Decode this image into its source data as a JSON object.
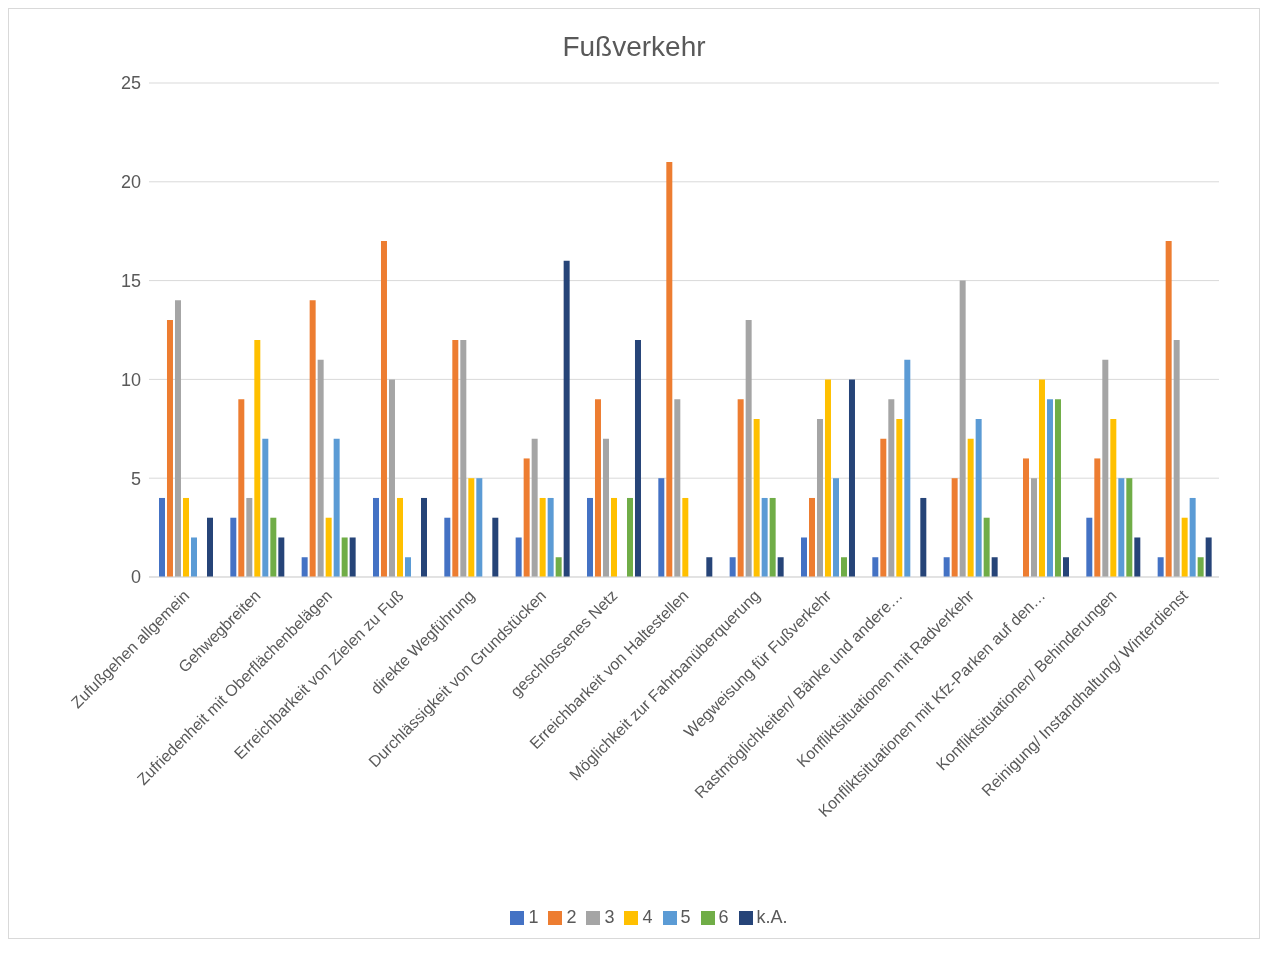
{
  "chart_data": {
    "type": "bar",
    "title": "Fußverkehr",
    "categories": [
      "Zufußgehen allgemein",
      "Gehwegbreiten",
      "Zufriedenheit mit Oberflächenbelägen",
      "Erreichbarkeit von Zielen zu Fuß",
      "direkte Wegführung",
      "Durchlässigkeit von Grundstücken",
      "geschlossenes Netz",
      "Erreichbarkeit von Haltestellen",
      "Möglichkeit zur Fahrbanüberquerung",
      "Wegweisung für Fußverkehr",
      "Rastmöglichkeiten/ Bänke und andere…",
      "Konfliktsituationen mit Radverkehr",
      "Konfliktsituationen mit Kfz-Parken auf den…",
      "Konfliktsituationen/ Behinderungen",
      "Reinigung/ Instandhaltung/ Winterdienst"
    ],
    "series": [
      {
        "name": "1",
        "color": "#4472c4",
        "values": [
          4,
          3,
          1,
          4,
          3,
          2,
          4,
          5,
          1,
          2,
          1,
          1,
          0,
          3,
          1
        ]
      },
      {
        "name": "2",
        "color": "#ed7d31",
        "values": [
          13,
          9,
          14,
          17,
          12,
          6,
          9,
          21,
          9,
          4,
          7,
          5,
          6,
          6,
          17
        ]
      },
      {
        "name": "3",
        "color": "#a5a5a5",
        "values": [
          14,
          4,
          11,
          10,
          12,
          7,
          7,
          9,
          13,
          8,
          9,
          15,
          5,
          11,
          12
        ]
      },
      {
        "name": "4",
        "color": "#ffc000",
        "values": [
          4,
          12,
          3,
          4,
          5,
          4,
          4,
          4,
          8,
          10,
          8,
          7,
          10,
          8,
          3
        ]
      },
      {
        "name": "5",
        "color": "#5b9bd5",
        "values": [
          2,
          7,
          7,
          1,
          5,
          4,
          0,
          0,
          4,
          5,
          11,
          8,
          9,
          5,
          4
        ]
      },
      {
        "name": "6",
        "color": "#70ad47",
        "values": [
          0,
          3,
          2,
          0,
          0,
          1,
          4,
          0,
          4,
          1,
          0,
          3,
          9,
          5,
          1
        ]
      },
      {
        "name": "k.A.",
        "color": "#264478",
        "values": [
          3,
          2,
          2,
          4,
          3,
          16,
          12,
          1,
          1,
          10,
          4,
          1,
          1,
          2,
          2
        ]
      }
    ],
    "ylim": [
      0,
      25
    ],
    "yticks": [
      0,
      5,
      10,
      15,
      20,
      25
    ],
    "grid": "y",
    "legend": "bottom"
  }
}
